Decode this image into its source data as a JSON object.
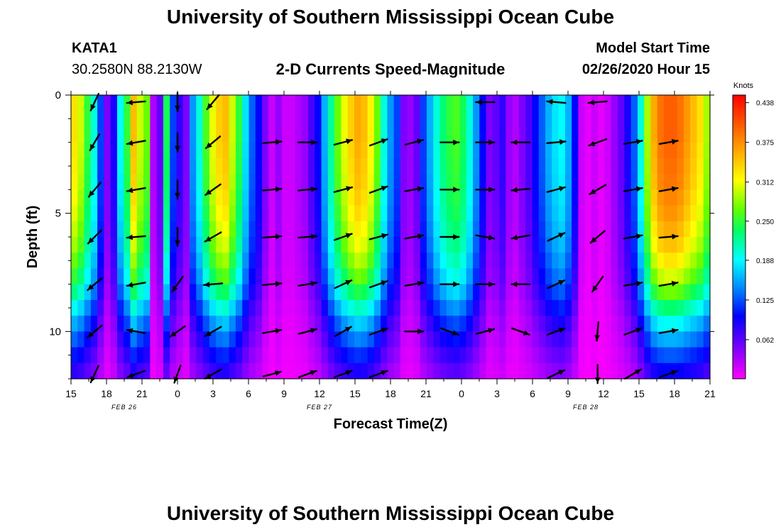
{
  "header": {
    "title": "University of Southern Mississippi Ocean Cube",
    "station_id": "KATA1",
    "station_coords": "30.2580N 88.2130W",
    "subtitle": "2-D Currents Speed-Magnitude",
    "model_label": "Model Start Time",
    "model_time": "02/26/2020 Hour 15"
  },
  "footer": {
    "title": "University of Southern Mississippi Ocean Cube"
  },
  "chart_data": {
    "type": "heatmap",
    "title": "2-D Currents Speed-Magnitude",
    "xlabel": "Forecast Time(Z)",
    "ylabel": "Depth (ft)",
    "ylim": [
      0,
      12
    ],
    "y_inverted": true,
    "y_ticks": [
      0,
      5,
      10
    ],
    "x_range_hours": [
      0,
      54
    ],
    "x_tick_labels": [
      "15",
      "18",
      "21",
      "0",
      "3",
      "6",
      "9",
      "12",
      "15",
      "18",
      "21",
      "0",
      "3",
      "6",
      "9",
      "12",
      "15",
      "18",
      "21"
    ],
    "date_labels": [
      {
        "label": "FEB 26",
        "hour": 4.5
      },
      {
        "label": "FEB 27",
        "hour": 21
      },
      {
        "label": "FEB 28",
        "hour": 43.5
      }
    ],
    "colorbar": {
      "label": "Knots",
      "min": 0,
      "max": 0.45,
      "ticks": [
        "0.438",
        "0.375",
        "0.312",
        "0.250",
        "0.188",
        "0.125",
        "0.062"
      ]
    },
    "speed_columns": [
      0.33,
      0.3,
      0.25,
      0.2,
      0.12,
      0.05,
      0.09,
      0.19,
      0.25,
      0.35,
      0.3,
      0.27,
      0.03,
      0.06,
      0.24,
      0.12,
      0.08,
      0.05,
      0.15,
      0.2,
      0.26,
      0.31,
      0.34,
      0.35,
      0.3,
      0.25,
      0.18,
      0.13,
      0.1,
      0.05,
      0.02,
      0.04,
      0.02,
      0.02,
      0.03,
      0.04,
      0.07,
      0.1,
      0.16,
      0.22,
      0.27,
      0.31,
      0.34,
      0.36,
      0.35,
      0.32,
      0.27,
      0.2,
      0.15,
      0.12,
      0.05,
      0.04,
      0.06,
      0.12,
      0.16,
      0.2,
      0.23,
      0.25,
      0.26,
      0.24,
      0.2,
      0.15,
      0.1,
      0.05,
      0.06,
      0.08,
      0.04,
      0.03,
      0.05,
      0.07,
      0.1,
      0.13,
      0.16,
      0.18,
      0.19,
      0.16,
      0.1,
      0.02,
      0.01,
      0.02,
      0.01,
      0.02,
      0.04,
      0.06,
      0.09,
      0.13,
      0.2,
      0.29,
      0.36,
      0.39,
      0.4,
      0.4,
      0.39,
      0.37,
      0.35,
      0.33,
      0.29
    ],
    "depth_factors": [
      1.0,
      1.0,
      1.0,
      0.99,
      0.98,
      0.97,
      0.95,
      0.93,
      0.9,
      0.87,
      0.82,
      0.76,
      0.68,
      0.58,
      0.48,
      0.4,
      0.32,
      0.25
    ],
    "vectors": {
      "times": [
        2,
        5.5,
        9,
        12,
        17,
        20,
        23,
        26,
        29,
        32,
        35,
        38,
        41,
        44.5,
        47.5,
        50.5
      ],
      "depths": [
        0.3,
        2,
        4,
        6,
        8,
        10,
        11.8
      ],
      "angles_deg": [
        [
          -115,
          -175,
          -90,
          -130,
          null,
          null,
          null,
          null,
          null,
          null,
          180,
          null,
          175,
          -175,
          null,
          null
        ],
        [
          -120,
          -170,
          -90,
          -140,
          5,
          0,
          15,
          20,
          15,
          0,
          0,
          -180,
          5,
          -160,
          10,
          10
        ],
        [
          -130,
          -170,
          -90,
          -145,
          5,
          5,
          15,
          20,
          10,
          0,
          0,
          -175,
          15,
          -150,
          10,
          10
        ],
        [
          -135,
          -175,
          -90,
          -150,
          5,
          5,
          20,
          15,
          10,
          0,
          -10,
          -170,
          25,
          -140,
          10,
          5
        ],
        [
          -140,
          -170,
          -125,
          -175,
          5,
          10,
          25,
          20,
          10,
          0,
          0,
          -180,
          25,
          -125,
          10,
          10
        ],
        [
          -140,
          170,
          -145,
          -150,
          10,
          15,
          30,
          20,
          0,
          -20,
          15,
          -20,
          20,
          -95,
          20,
          10
        ],
        [
          -115,
          -160,
          -110,
          -150,
          15,
          20,
          20,
          20,
          null,
          null,
          null,
          null,
          25,
          -90,
          30,
          20
        ]
      ]
    }
  }
}
